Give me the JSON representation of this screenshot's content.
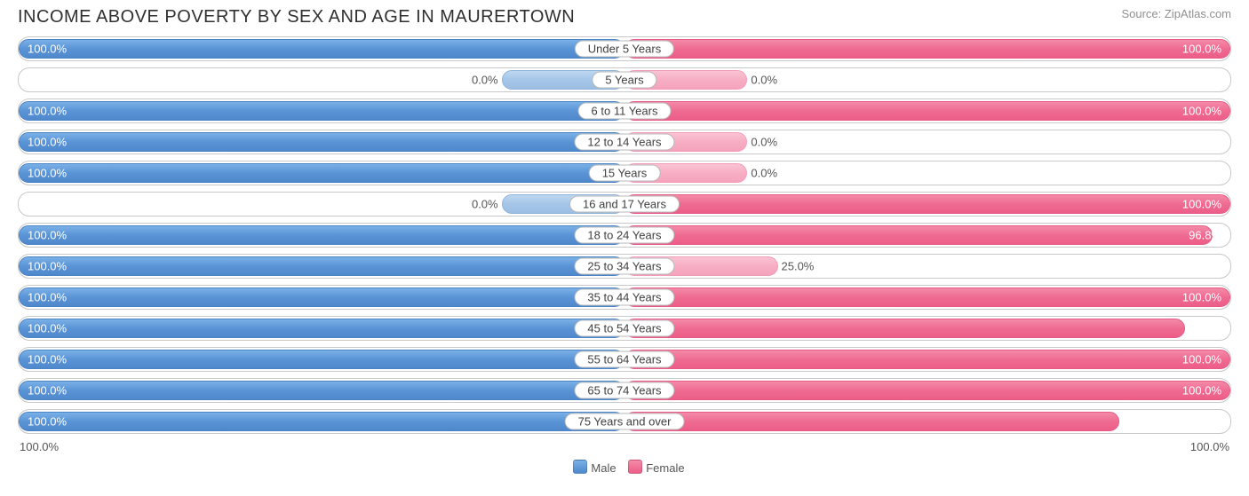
{
  "title": "INCOME ABOVE POVERTY BY SEX AND AGE IN MAURERTOWN",
  "source": "Source: ZipAtlas.com",
  "axis": {
    "left": "100.0%",
    "right": "100.0%"
  },
  "legend": {
    "male": "Male",
    "female": "Female"
  },
  "colors": {
    "male_full": "#5a94d6",
    "male_partial": "#a5c6e8",
    "female_full": "#ef6b92",
    "female_partial": "#f7aec5",
    "border": "#c8c8c8",
    "text": "#303030",
    "source_text": "#909090",
    "background": "#ffffff"
  },
  "chart": {
    "type": "diverging-bar",
    "half_width_pct": 50,
    "partial_default_pct": 10,
    "rows": [
      {
        "age": "Under 5 Years",
        "male": 100.0,
        "female": 100.0
      },
      {
        "age": "5 Years",
        "male": 0.0,
        "female": 0.0
      },
      {
        "age": "6 to 11 Years",
        "male": 100.0,
        "female": 100.0
      },
      {
        "age": "12 to 14 Years",
        "male": 100.0,
        "female": 0.0
      },
      {
        "age": "15 Years",
        "male": 100.0,
        "female": 0.0
      },
      {
        "age": "16 and 17 Years",
        "male": 0.0,
        "female": 100.0
      },
      {
        "age": "18 to 24 Years",
        "male": 100.0,
        "female": 96.8
      },
      {
        "age": "25 to 34 Years",
        "male": 100.0,
        "female": 25.0
      },
      {
        "age": "35 to 44 Years",
        "male": 100.0,
        "female": 100.0
      },
      {
        "age": "45 to 54 Years",
        "male": 100.0,
        "female": 92.3
      },
      {
        "age": "55 to 64 Years",
        "male": 100.0,
        "female": 100.0
      },
      {
        "age": "65 to 74 Years",
        "male": 100.0,
        "female": 100.0
      },
      {
        "age": "75 Years and over",
        "male": 100.0,
        "female": 81.4
      }
    ]
  }
}
